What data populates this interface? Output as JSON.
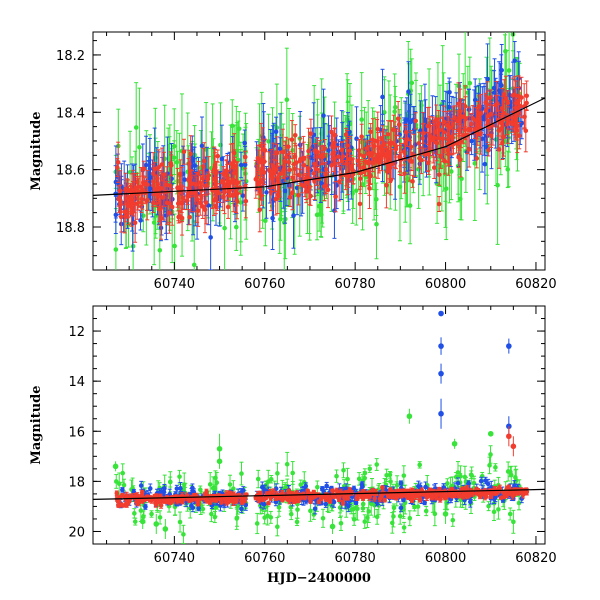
{
  "colors": {
    "blue": "#1f4fe6",
    "red": "#f23c2e",
    "green": "#38e33a",
    "model_line": "#000000"
  },
  "chart_data": [
    {
      "type": "scatter",
      "panel": "top",
      "xlabel": "",
      "ylabel": "Magnitude",
      "xlim": [
        60722,
        60822
      ],
      "ylim": [
        18.95,
        18.12
      ],
      "y_inverted": true,
      "x_ticks": [
        60740,
        60760,
        60780,
        60800,
        60820
      ],
      "x_tick_labels": [
        "60740",
        "60760",
        "60780",
        "60800",
        "60820"
      ],
      "y_ticks": [
        18.2,
        18.4,
        18.6,
        18.8
      ],
      "y_tick_labels": [
        "18.2",
        "18.4",
        "18.6",
        "18.8"
      ],
      "error_bars": true,
      "model_trend": {
        "x": [
          60722,
          60760,
          60780,
          60800,
          60822
        ],
        "y": [
          18.69,
          18.66,
          18.61,
          18.52,
          18.35
        ]
      },
      "series": [
        {
          "color_key": "green",
          "x_range": [
            60727,
            60817
          ],
          "mag_center": [
            18.68,
            18.4
          ],
          "scatter": 0.1,
          "err": 0.13
        },
        {
          "color_key": "blue",
          "x_range": [
            60727,
            60817
          ],
          "mag_center": [
            18.68,
            18.38
          ],
          "scatter": 0.06,
          "err": 0.08
        },
        {
          "color_key": "red",
          "x_range": [
            60727,
            60818
          ],
          "mag_center": [
            18.68,
            18.4
          ],
          "scatter": 0.05,
          "err": 0.05
        }
      ],
      "observing_gaps": [
        [
          60756,
          60758
        ]
      ]
    },
    {
      "type": "scatter",
      "panel": "bottom",
      "xlabel": "HJD−2400000",
      "ylabel": "Magnitude",
      "xlim": [
        60722,
        60822
      ],
      "ylim": [
        20.5,
        11.0
      ],
      "y_inverted": true,
      "x_ticks": [
        60740,
        60760,
        60780,
        60800,
        60820
      ],
      "x_tick_labels": [
        "60740",
        "60760",
        "60780",
        "60800",
        "60820"
      ],
      "y_ticks": [
        12,
        14,
        16,
        18,
        20
      ],
      "y_tick_labels": [
        "12",
        "14",
        "16",
        "18",
        "20"
      ],
      "error_bars": true,
      "model_trend": {
        "x": [
          60722,
          60822
        ],
        "y": [
          18.72,
          18.32
        ]
      },
      "series": [
        {
          "color_key": "green",
          "x_range": [
            60727,
            60817
          ],
          "mag_center": [
            18.72,
            18.35
          ],
          "scatter": 0.55,
          "err": 0.3
        },
        {
          "color_key": "blue",
          "x_range": [
            60727,
            60817
          ],
          "mag_center": [
            18.7,
            18.35
          ],
          "scatter": 0.2,
          "err": 0.15
        },
        {
          "color_key": "red",
          "x_range": [
            60727,
            60818
          ],
          "mag_center": [
            18.7,
            18.38
          ],
          "scatter": 0.1,
          "err": 0.08
        }
      ],
      "outliers": [
        {
          "series": "blue",
          "x": 60799,
          "y": 11.3,
          "err": 0.1
        },
        {
          "series": "blue",
          "x": 60799,
          "y": 12.6,
          "err": 0.35
        },
        {
          "series": "blue",
          "x": 60799,
          "y": 13.7,
          "err": 0.4
        },
        {
          "series": "blue",
          "x": 60799,
          "y": 15.3,
          "err": 0.6
        },
        {
          "series": "blue",
          "x": 60814,
          "y": 12.6,
          "err": 0.3
        },
        {
          "series": "blue",
          "x": 60814,
          "y": 15.8,
          "err": 0.4
        },
        {
          "series": "red",
          "x": 60814,
          "y": 16.2,
          "err": 0.4
        },
        {
          "series": "red",
          "x": 60815,
          "y": 16.6,
          "err": 0.4
        },
        {
          "series": "green",
          "x": 60792,
          "y": 15.4,
          "err": 0.3
        },
        {
          "series": "green",
          "x": 60802,
          "y": 16.5,
          "err": 0.2
        },
        {
          "series": "green",
          "x": 60810,
          "y": 16.1,
          "err": 0.1
        },
        {
          "series": "green",
          "x": 60750,
          "y": 16.7,
          "err": 0.6
        },
        {
          "series": "green",
          "x": 60750,
          "y": 17.2,
          "err": 0.3
        },
        {
          "series": "green",
          "x": 60727,
          "y": 17.4,
          "err": 0.2
        },
        {
          "series": "green",
          "x": 60736,
          "y": 19.7,
          "err": 0.4
        },
        {
          "series": "green",
          "x": 60738,
          "y": 19.9,
          "err": 0.4
        },
        {
          "series": "green",
          "x": 60733,
          "y": 19.6,
          "err": 0.3
        },
        {
          "series": "green",
          "x": 60775,
          "y": 19.8,
          "err": 0.3
        },
        {
          "series": "green",
          "x": 60800,
          "y": 19.3,
          "err": 0.4
        }
      ],
      "observing_gaps": [
        [
          60756,
          60758
        ]
      ]
    }
  ]
}
